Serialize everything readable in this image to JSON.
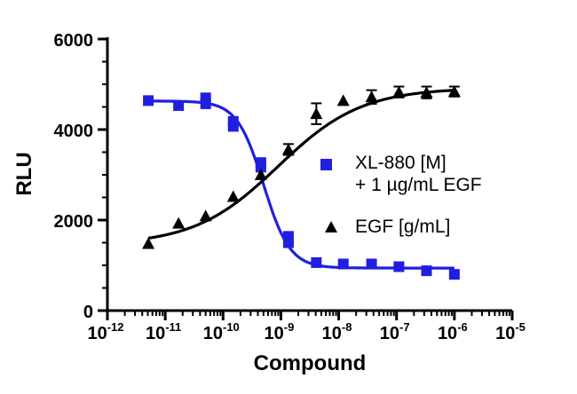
{
  "chart_data": {
    "type": "scatter",
    "xlabel": "Compound",
    "ylabel": "RLU",
    "xscale": "log",
    "xlim": [
      1e-12,
      1e-05
    ],
    "ylim": [
      0,
      6000
    ],
    "x_tick_labels": [
      {
        "base": "10",
        "exp": "-12"
      },
      {
        "base": "10",
        "exp": "-11"
      },
      {
        "base": "10",
        "exp": "-10"
      },
      {
        "base": "10",
        "exp": "-9"
      },
      {
        "base": "10",
        "exp": "-8"
      },
      {
        "base": "10",
        "exp": "-7"
      },
      {
        "base": "10",
        "exp": "-6"
      },
      {
        "base": "10",
        "exp": "-5"
      }
    ],
    "y_tick_labels": [
      "0",
      "2000",
      "4000",
      "6000"
    ],
    "legend_placement": "right",
    "series": [
      {
        "name_line1": "XL-880 [M]",
        "name_line2": "+ 1 µg/mL  EGF",
        "marker": "square",
        "color": "#1f1fe0",
        "points": [
          {
            "x": 5.1e-12,
            "y": 4640
          },
          {
            "x": 1.7e-11,
            "y": 4530
          },
          {
            "x": 5e-11,
            "y": 4700
          },
          {
            "x": 5e-11,
            "y": 4570
          },
          {
            "x": 1.5e-10,
            "y": 4180
          },
          {
            "x": 1.5e-10,
            "y": 4070
          },
          {
            "x": 4.5e-10,
            "y": 3270
          },
          {
            "x": 4.5e-10,
            "y": 3170
          },
          {
            "x": 1.35e-09,
            "y": 1640
          },
          {
            "x": 1.35e-09,
            "y": 1500
          },
          {
            "x": 4.1e-09,
            "y": 1060
          },
          {
            "x": 1.2e-08,
            "y": 1030
          },
          {
            "x": 3.7e-08,
            "y": 1030
          },
          {
            "x": 1.1e-07,
            "y": 970
          },
          {
            "x": 3.3e-07,
            "y": 880
          },
          {
            "x": 1e-06,
            "y": 800
          }
        ],
        "fit": {
          "bottom": 940,
          "top": 4630,
          "log_ec50": -9.3,
          "hill": -1.9
        }
      },
      {
        "name": "EGF [g/mL]",
        "marker": "triangle",
        "color": "#000000",
        "points": [
          {
            "x": 5.1e-12,
            "y": 1480
          },
          {
            "x": 1.7e-11,
            "y": 1930
          },
          {
            "x": 5e-11,
            "y": 2090
          },
          {
            "x": 1.5e-10,
            "y": 2520
          },
          {
            "x": 4.5e-10,
            "y": 3000
          },
          {
            "x": 1.35e-09,
            "y": 3560,
            "err": 120
          },
          {
            "x": 4.1e-09,
            "y": 4350,
            "err": 230
          },
          {
            "x": 1.2e-08,
            "y": 4640
          },
          {
            "x": 3.7e-08,
            "y": 4720,
            "err": 150
          },
          {
            "x": 1.1e-07,
            "y": 4830,
            "err": 120
          },
          {
            "x": 3.3e-07,
            "y": 4820,
            "err": 130
          },
          {
            "x": 1e-06,
            "y": 4840,
            "err": 110
          }
        ],
        "fit": {
          "bottom": 1450,
          "top": 4920,
          "log_ec50": -9.05,
          "hill": 0.6
        }
      }
    ]
  }
}
